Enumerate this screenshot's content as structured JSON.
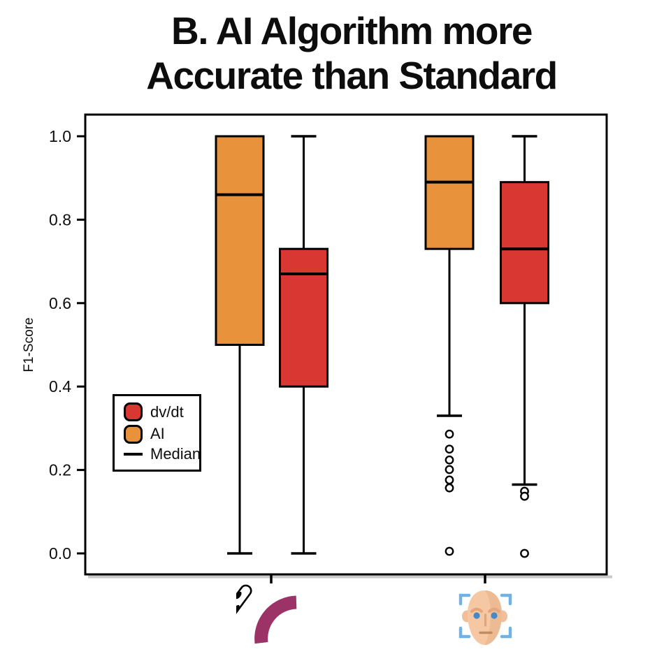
{
  "title": {
    "line1": "B. AI Algorithm more",
    "line2": "Accurate than Standard"
  },
  "colors": {
    "ai_box": "#E8923C",
    "dvdt_box": "#D93732",
    "axis_line": "#000000",
    "catheter_arc": "#9C3366",
    "face_skin": "#F5C8A3",
    "face_skin_shade": "#EDBB93",
    "face_eye": "#4489CB",
    "face_bracket": "#72B1E4"
  },
  "legend": {
    "items": [
      {
        "label": "dv/dt",
        "swatch": "box",
        "color": "#D93732"
      },
      {
        "label": "AI",
        "swatch": "box",
        "color": "#E8923C"
      },
      {
        "label": "Median",
        "swatch": "line",
        "color": "#000000"
      }
    ]
  },
  "x_categories": [
    {
      "icon": "catheter-ablation-icon"
    },
    {
      "icon": "face-recognition-icon"
    }
  ],
  "chart_data": {
    "type": "boxplot",
    "title": "B. AI Algorithm more Accurate than Standard",
    "ylabel": "F1-Score",
    "ylim": [
      -0.05,
      1.05
    ],
    "yticks": [
      0.0,
      0.2,
      0.4,
      0.6,
      0.8,
      1.0
    ],
    "ytick_labels": [
      "0.0",
      "0.2",
      "0.4",
      "0.6",
      "0.8",
      "1.0"
    ],
    "grid": false,
    "legend_position": "center-left",
    "groups": [
      {
        "category": "catheter-ablation",
        "boxes": [
          {
            "series": "AI",
            "color": "#E8923C",
            "whisker_low": 0.0,
            "q1": 0.5,
            "median": 0.86,
            "q3": 1.0,
            "whisker_high": 1.0,
            "outliers": []
          },
          {
            "series": "dv/dt",
            "color": "#D93732",
            "whisker_low": 0.0,
            "q1": 0.4,
            "median": 0.67,
            "q3": 0.73,
            "whisker_high": 1.0,
            "outliers": []
          }
        ]
      },
      {
        "category": "face-recognition",
        "boxes": [
          {
            "series": "AI",
            "color": "#E8923C",
            "whisker_low": 0.33,
            "q1": 0.73,
            "median": 0.89,
            "q3": 1.0,
            "whisker_high": 1.0,
            "outliers": [
              0.286,
              0.25,
              0.224,
              0.201,
              0.176,
              0.157,
              0.005
            ]
          },
          {
            "series": "dv/dt",
            "color": "#D93732",
            "whisker_low": 0.165,
            "q1": 0.6,
            "median": 0.73,
            "q3": 0.89,
            "whisker_high": 1.0,
            "outliers": [
              0.149,
              0.137,
              0.0
            ]
          }
        ]
      }
    ]
  }
}
